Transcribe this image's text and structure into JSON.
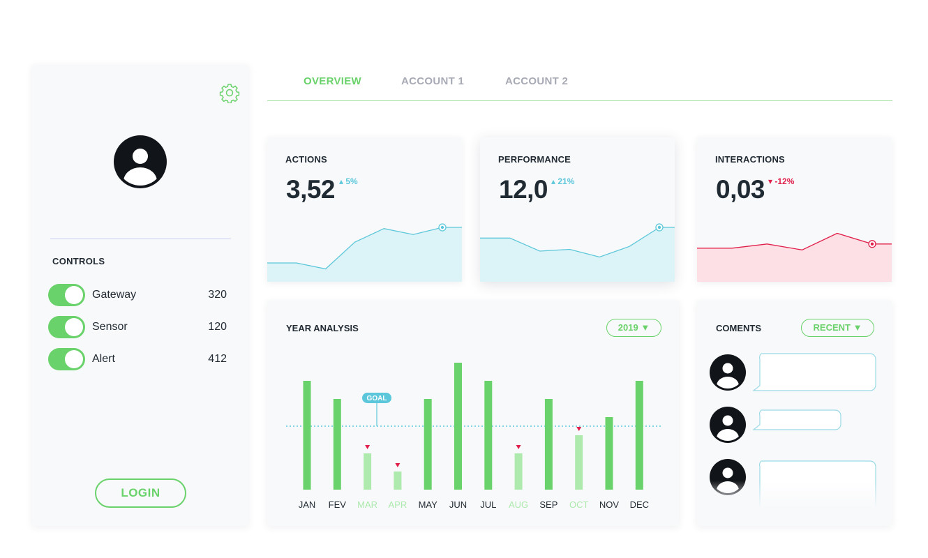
{
  "sidebar": {
    "controls_title": "CONTROLS",
    "controls": [
      {
        "label": "Gateway",
        "value": "320",
        "on": true
      },
      {
        "label": "Sensor",
        "value": "120",
        "on": true
      },
      {
        "label": "Alert",
        "value": "412",
        "on": true
      }
    ],
    "login_label": "LOGIN",
    "icons": {
      "settings": "gear-icon",
      "avatar": "user-avatar-icon"
    }
  },
  "tabs": [
    {
      "label": "OVERVIEW",
      "active": true
    },
    {
      "label": "ACCOUNT 1",
      "active": false
    },
    {
      "label": "ACCOUNT 2",
      "active": false
    }
  ],
  "kpis": [
    {
      "title": "ACTIONS",
      "value": "3,52",
      "change": "5%",
      "direction": "up",
      "color": "#5cc7da",
      "fill": "#dcf3f7",
      "series": [
        0.2,
        0.2,
        0.1,
        0.55,
        0.78,
        0.68,
        0.8,
        0.8
      ]
    },
    {
      "title": "PERFORMANCE",
      "value": "12,0",
      "change": "21%",
      "direction": "up",
      "color": "#5cc7da",
      "fill": "#dcf3f7",
      "series": [
        0.62,
        0.62,
        0.4,
        0.43,
        0.3,
        0.48,
        0.8,
        0.8
      ]
    },
    {
      "title": "INTERACTIONS",
      "value": "0,03",
      "change": "-12%",
      "direction": "down",
      "color": "#e0204a",
      "fill": "#fde0e6",
      "series": [
        0.45,
        0.45,
        0.52,
        0.42,
        0.7,
        0.52,
        0.52
      ]
    }
  ],
  "year_analysis": {
    "title": "YEAR ANALYSIS",
    "year_selected": "2019",
    "goal_label": "GOAL",
    "colors": {
      "bar": "#6ad26a",
      "bar_below": "#aee9ae",
      "goal_line": "#5cc7da",
      "marker": "#e0204a"
    },
    "chart_data": {
      "type": "bar",
      "categories": [
        "JAN",
        "FEV",
        "MAR",
        "APR",
        "MAY",
        "JUN",
        "JUL",
        "AUG",
        "SEP",
        "OCT",
        "NOV",
        "DEC"
      ],
      "values": [
        6.0,
        5.0,
        2.0,
        1.0,
        5.0,
        7.0,
        6.0,
        2.0,
        5.0,
        3.0,
        4.0,
        6.0
      ],
      "below_goal": [
        false,
        false,
        true,
        true,
        false,
        false,
        false,
        true,
        false,
        true,
        false,
        false
      ],
      "goal": 3.5,
      "ylim": [
        0,
        7
      ]
    }
  },
  "comments": {
    "title": "COMENTS",
    "filter_selected": "RECENT"
  }
}
